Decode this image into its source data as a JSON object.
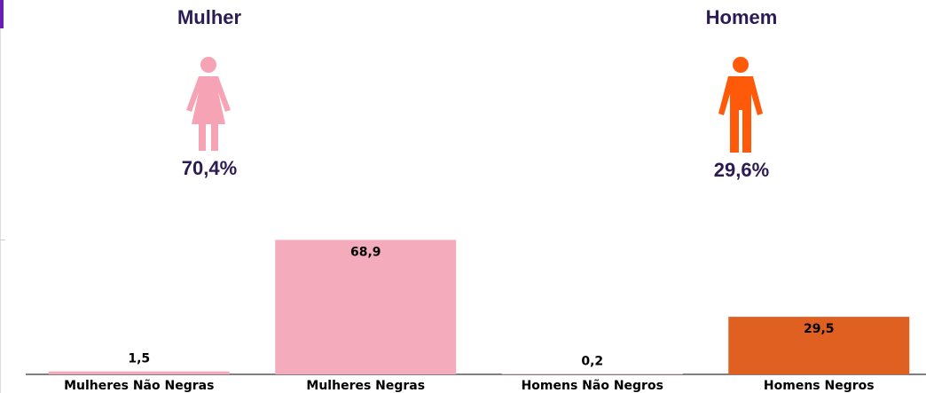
{
  "colors": {
    "female": "#f4acbc",
    "male": "#e06022",
    "female_icon": "#f7a3b6",
    "male_icon": "#ff5a0a",
    "title_text": "#2b1b55"
  },
  "summary": {
    "female": {
      "title": "Mulher",
      "percent": "70,4%",
      "icon": "female-person-icon"
    },
    "male": {
      "title": "Homem",
      "percent": "29,6%",
      "icon": "male-person-icon"
    }
  },
  "chart_data": {
    "type": "bar",
    "categories": [
      "Mulheres Não Negras",
      "Mulheres Negras",
      "Homens Não Negros",
      "Homens Negros"
    ],
    "values": [
      1.5,
      68.9,
      0.2,
      29.5
    ],
    "value_labels": [
      "1,5",
      "68,9",
      "0,2",
      "29,5"
    ],
    "colors": [
      "#f4acbc",
      "#f4acbc",
      "#f4acbc",
      "#e06022"
    ],
    "ylim": [
      0,
      70
    ],
    "grid": false,
    "xlabel": "",
    "ylabel": ""
  }
}
